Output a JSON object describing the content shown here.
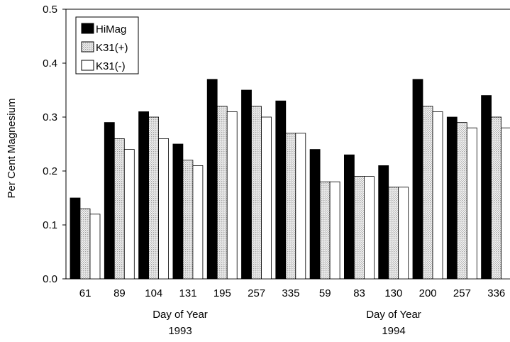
{
  "chart_data": {
    "type": "bar",
    "ylabel": "Per Cent Magnesium",
    "ylim": [
      0,
      0.5
    ],
    "yticks": [
      "0.0",
      "0.1",
      "0.2",
      "0.3",
      "0.4",
      "0.5"
    ],
    "groups": [
      {
        "xlabel": "Day of Year",
        "year": "1993",
        "categories": [
          "61",
          "89",
          "104",
          "131",
          "195",
          "257",
          "335"
        ]
      },
      {
        "xlabel": "Day of Year",
        "year": "1994",
        "categories": [
          "59",
          "83",
          "130",
          "200",
          "257",
          "336"
        ]
      }
    ],
    "categories": [
      "61",
      "89",
      "104",
      "131",
      "195",
      "257",
      "335",
      "59",
      "83",
      "130",
      "200",
      "257",
      "336"
    ],
    "series": [
      {
        "name": "HiMag",
        "fill": "#000000",
        "values": [
          0.15,
          0.29,
          0.31,
          0.25,
          0.37,
          0.35,
          0.33,
          0.24,
          0.23,
          0.21,
          0.37,
          0.3,
          0.34
        ]
      },
      {
        "name": "K31(+)",
        "fill": "hatch",
        "values": [
          0.13,
          0.26,
          0.3,
          0.22,
          0.32,
          0.32,
          0.27,
          0.18,
          0.19,
          0.17,
          0.32,
          0.29,
          0.3
        ]
      },
      {
        "name": "K31(-)",
        "fill": "#ffffff",
        "values": [
          0.12,
          0.24,
          0.26,
          0.21,
          0.31,
          0.3,
          0.27,
          0.18,
          0.19,
          0.17,
          0.31,
          0.28,
          0.28
        ]
      }
    ],
    "legend_position": "top-left",
    "grid": false
  }
}
